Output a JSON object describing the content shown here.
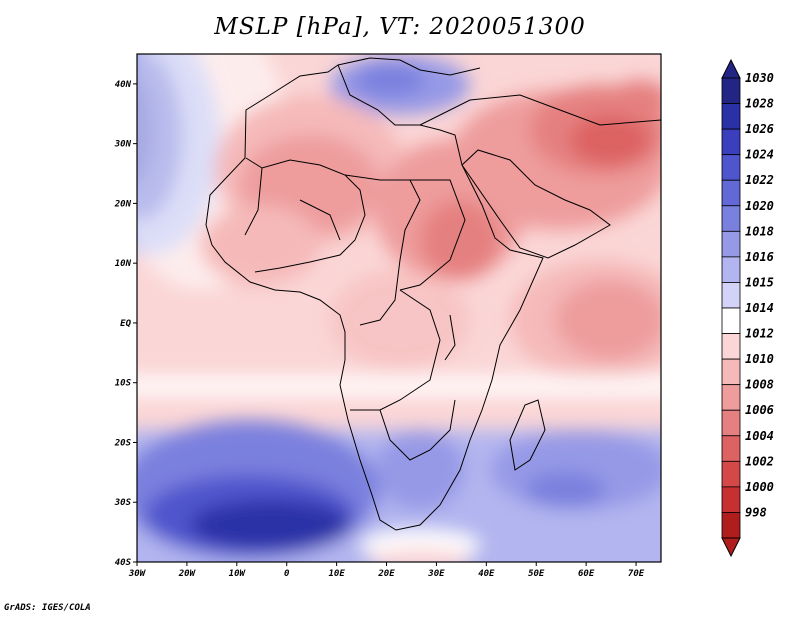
{
  "title": "MSLP [hPa], VT: 2020051300",
  "credit": "GrADS: IGES/COLA",
  "map": {
    "lon_range": [
      -30,
      75
    ],
    "lat_range": [
      -40,
      45
    ],
    "lat_labels": [
      "40N",
      "30N",
      "20N",
      "10N",
      "EQ",
      "10S",
      "20S",
      "30S",
      "40S"
    ],
    "lon_labels": [
      "30W",
      "20W",
      "10W",
      "0",
      "10E",
      "20E",
      "30E",
      "40E",
      "50E",
      "60E",
      "70E"
    ]
  },
  "colorbar": {
    "levels": [
      "1030",
      "1028",
      "1026",
      "1024",
      "1022",
      "1020",
      "1018",
      "1016",
      "1015",
      "1014",
      "1012",
      "1010",
      "1008",
      "1006",
      "1004",
      "1002",
      "1000",
      "998"
    ],
    "colors": [
      "#232585",
      "#2a30a6",
      "#3b3fbe",
      "#4f55cc",
      "#6268d6",
      "#7a80de",
      "#9699e6",
      "#b2b5ef",
      "#d2d3f7",
      "#ffffff",
      "#fbd6d6",
      "#f5b9b9",
      "#ee9c9c",
      "#e58080",
      "#dd6262",
      "#d44848",
      "#c73030",
      "#b01d1d"
    ]
  }
}
